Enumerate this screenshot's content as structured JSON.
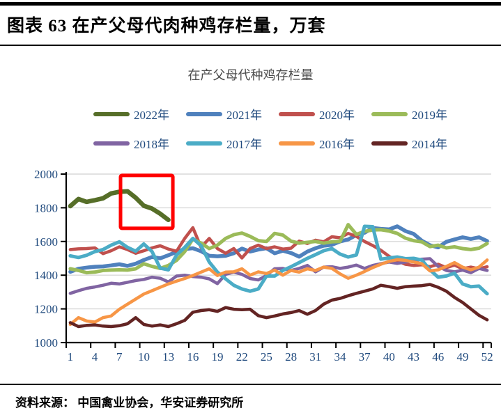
{
  "header": {
    "title": "图表 63  在产父母代肉种鸡存栏量，万套"
  },
  "source": {
    "text": "资料来源： 中国禽业协会，华安证券研究所"
  },
  "chart_data": {
    "type": "line",
    "title": "在产父母代种鸡存栏量",
    "xlabel": "",
    "ylabel": "",
    "x_range": [
      1,
      52
    ],
    "x_tick_labels": [
      1,
      4,
      7,
      10,
      13,
      16,
      19,
      22,
      25,
      28,
      31,
      34,
      37,
      40,
      43,
      46,
      49,
      52
    ],
    "ylim": [
      1000,
      2000
    ],
    "y_tick_labels": [
      2000,
      1800,
      1600,
      1400,
      1200,
      1000
    ],
    "grid": true,
    "legend_position": "top",
    "axis_text_color": "#1F497D",
    "grid_color": "#D9D9D9",
    "axis_color": "#000000",
    "highlight_box": {
      "color": "#FF0000",
      "x_range": [
        7.15,
        13.55
      ],
      "y_range": [
        1678,
        1992
      ]
    },
    "series": [
      {
        "name": "2022年",
        "color": "#566E28",
        "width": 6.5,
        "values": [
          1810,
          1852,
          1835,
          1845,
          1856,
          1885,
          1895,
          1898,
          1860,
          1812,
          1795,
          1765,
          1728
        ]
      },
      {
        "name": "2021年",
        "color": "#4F81BD",
        "width": 5.5,
        "values": [
          1420,
          1438,
          1445,
          1450,
          1452,
          1458,
          1465,
          1455,
          1468,
          1490,
          1508,
          1500,
          1518,
          1538,
          1555,
          1560,
          1542,
          1515,
          1512,
          1515,
          1530,
          1558,
          1540,
          1552,
          1560,
          1530,
          1545,
          1532,
          1510,
          1540,
          1560,
          1575,
          1580,
          1600,
          1612,
          1638,
          1652,
          1680,
          1675,
          1672,
          1690,
          1662,
          1645,
          1605,
          1578,
          1565,
          1598,
          1612,
          1625,
          1615,
          1625,
          1603
        ]
      },
      {
        "name": "2020年",
        "color": "#C0504D",
        "width": 4.5,
        "values": [
          1552,
          1556,
          1558,
          1562,
          1528,
          1545,
          1568,
          1552,
          1530,
          1545,
          1562,
          1575,
          1555,
          1542,
          1618,
          1682,
          1565,
          1618,
          1558,
          1530,
          1558,
          1502,
          1558,
          1578,
          1558,
          1568,
          1555,
          1560,
          1602,
          1588,
          1608,
          1598,
          1628,
          1622,
          1648,
          1630,
          1600,
          1576,
          1548,
          1512,
          1485,
          1465,
          1458,
          1462,
          1450,
          1465,
          1445,
          1460,
          1438,
          1448,
          1438,
          1450
        ]
      },
      {
        "name": "2019年",
        "color": "#9BBB59",
        "width": 5,
        "values": [
          1438,
          1428,
          1415,
          1418,
          1428,
          1430,
          1432,
          1430,
          1438,
          1468,
          1452,
          1440,
          1458,
          1488,
          1540,
          1615,
          1590,
          1558,
          1578,
          1618,
          1640,
          1650,
          1630,
          1605,
          1600,
          1648,
          1638,
          1602,
          1590,
          1595,
          1600,
          1590,
          1598,
          1600,
          1700,
          1642,
          1660,
          1668,
          1670,
          1662,
          1648,
          1620,
          1605,
          1598,
          1570,
          1578,
          1562,
          1568,
          1558,
          1552,
          1560,
          1588
        ]
      },
      {
        "name": "2018年",
        "color": "#8064A2",
        "width": 4.5,
        "values": [
          1292,
          1308,
          1322,
          1330,
          1340,
          1352,
          1348,
          1358,
          1368,
          1375,
          1388,
          1382,
          1360,
          1395,
          1400,
          1392,
          1388,
          1378,
          1350,
          1405,
          1418,
          1405,
          1380,
          1372,
          1398,
          1438,
          1440,
          1428,
          1440,
          1458,
          1420,
          1448,
          1450,
          1440,
          1448,
          1460,
          1440,
          1458,
          1468,
          1478,
          1470,
          1478,
          1485,
          1495,
          1498,
          1452,
          1428,
          1420,
          1430,
          1415,
          1440,
          1428
        ]
      },
      {
        "name": "2017年",
        "color": "#4BACC6",
        "width": 5,
        "values": [
          1515,
          1505,
          1518,
          1540,
          1552,
          1578,
          1598,
          1565,
          1542,
          1585,
          1540,
          1442,
          1432,
          1520,
          1565,
          1618,
          1575,
          1478,
          1418,
          1378,
          1340,
          1318,
          1305,
          1318,
          1395,
          1395,
          1428,
          1450,
          1475,
          1500,
          1522,
          1545,
          1558,
          1525,
          1508,
          1520,
          1690,
          1688,
          1495,
          1502,
          1508,
          1498,
          1500,
          1490,
          1432,
          1388,
          1395,
          1412,
          1348,
          1332,
          1335,
          1290
        ]
      },
      {
        "name": "2016年",
        "color": "#F79646",
        "width": 4.5,
        "values": [
          1108,
          1148,
          1128,
          1122,
          1148,
          1158,
          1198,
          1228,
          1258,
          1288,
          1308,
          1328,
          1348,
          1365,
          1380,
          1398,
          1418,
          1438,
          1398,
          1418,
          1420,
          1438,
          1400,
          1420,
          1410,
          1430,
          1400,
          1428,
          1418,
          1438,
          1428,
          1448,
          1440,
          1408,
          1382,
          1400,
          1422,
          1445,
          1465,
          1482,
          1492,
          1488,
          1478,
          1468,
          1425,
          1432,
          1452,
          1475,
          1448,
          1432,
          1448,
          1490
        ]
      },
      {
        "name": "2014年",
        "color": "#632423",
        "width": 4.5,
        "values": [
          1118,
          1095,
          1102,
          1105,
          1098,
          1095,
          1100,
          1112,
          1148,
          1108,
          1098,
          1105,
          1095,
          1112,
          1132,
          1180,
          1190,
          1195,
          1185,
          1208,
          1198,
          1195,
          1198,
          1160,
          1148,
          1158,
          1170,
          1178,
          1190,
          1168,
          1190,
          1228,
          1252,
          1262,
          1278,
          1292,
          1305,
          1318,
          1340,
          1332,
          1322,
          1332,
          1335,
          1338,
          1345,
          1328,
          1305,
          1268,
          1238,
          1200,
          1162,
          1135
        ]
      }
    ]
  }
}
